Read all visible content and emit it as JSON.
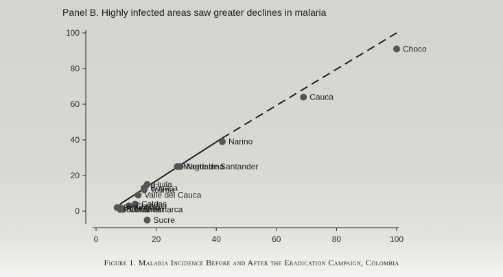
{
  "caption": "Figure 1. Malaria Incidence Before and After the Eradication Campaign, Colombia",
  "chart_data": {
    "type": "scatter",
    "title": "Panel B. Highly infected areas saw greater declines in malaria",
    "xlabel": "",
    "ylabel": "",
    "xlim": [
      0,
      100
    ],
    "ylim": [
      -5,
      100
    ],
    "xticks": [
      0,
      20,
      40,
      60,
      80,
      100
    ],
    "yticks": [
      0,
      20,
      40,
      60,
      80,
      100
    ],
    "tick_labels_x": [
      "0",
      "20",
      "40",
      "60",
      "80",
      "100"
    ],
    "tick_labels_y": [
      "0",
      "20",
      "40",
      "60",
      "80",
      "100"
    ],
    "grid": false,
    "points": [
      {
        "label": "Choco",
        "x": 100,
        "y": 91,
        "label_side": "right"
      },
      {
        "label": "Cauca",
        "x": 69,
        "y": 64,
        "label_side": "right"
      },
      {
        "label": "Narino",
        "x": 42,
        "y": 39,
        "label_side": "right"
      },
      {
        "label": "Norte de Santander",
        "x": 28,
        "y": 25,
        "label_side": "right"
      },
      {
        "label": "Magdalena",
        "x": 27,
        "y": 25,
        "label_side": "right"
      },
      {
        "label": "Huila",
        "x": 17,
        "y": 15,
        "label_side": "right"
      },
      {
        "label": "Boyaca",
        "x": 16,
        "y": 13,
        "label_side": "right"
      },
      {
        "label": "Tolima",
        "x": 16,
        "y": 12,
        "label_side": "right"
      },
      {
        "label": "Valle del Cauca",
        "x": 14,
        "y": 9,
        "label_side": "right"
      },
      {
        "label": "Caldas",
        "x": 13,
        "y": 4,
        "label_side": "right"
      },
      {
        "label": "Cordoba",
        "x": 11,
        "y": 3,
        "label_side": "right"
      },
      {
        "label": "Antioquia",
        "x": 8,
        "y": 2,
        "label_side": "right"
      },
      {
        "label": "Bolivar",
        "x": 7,
        "y": 2,
        "label_side": "right"
      },
      {
        "label": "Santander",
        "x": 8,
        "y": 1,
        "label_side": "right"
      },
      {
        "label": "Cundinamarca",
        "x": 9,
        "y": 1,
        "label_side": "right"
      },
      {
        "label": "Sucre",
        "x": 17,
        "y": -5,
        "label_side": "right"
      }
    ],
    "fit_line": {
      "solid": {
        "x0": 8,
        "y0": 4,
        "x1": 42,
        "y1": 41
      },
      "dashed": {
        "x0": 42,
        "y0": 41,
        "x1": 100,
        "y1": 100
      }
    }
  }
}
